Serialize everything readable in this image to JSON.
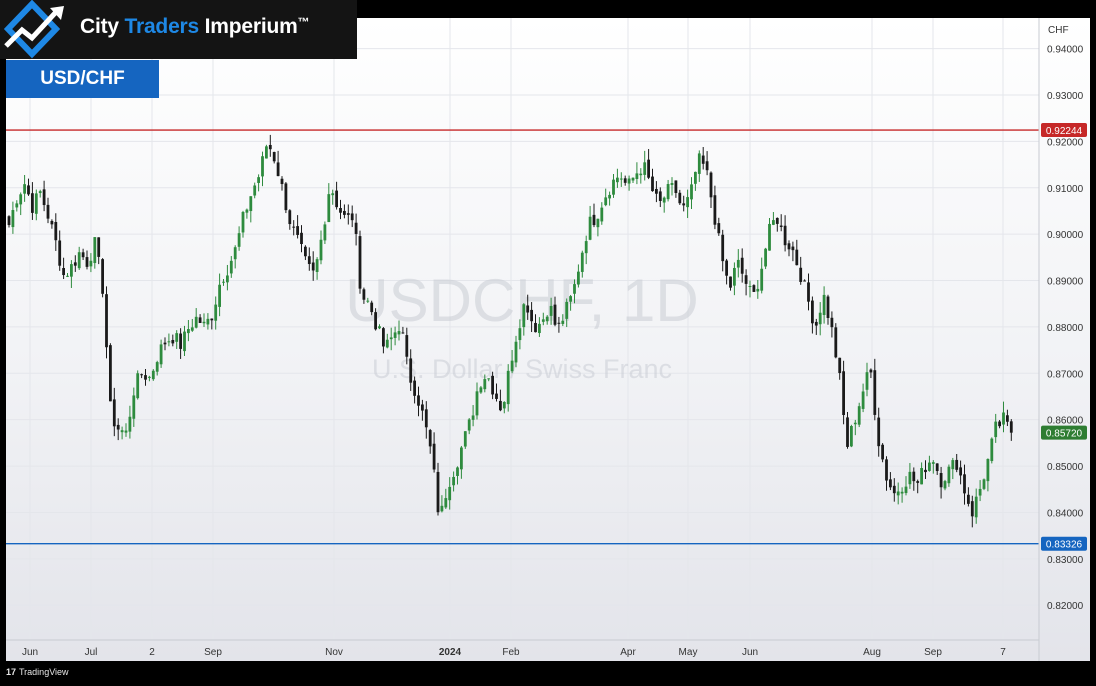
{
  "brand": {
    "name_part1": "City ",
    "name_accent": "Traders",
    "name_part2": " Imperium",
    "trademark": "™"
  },
  "pair_label": "USD/CHF",
  "footer": {
    "logo_mark": "17",
    "text": "TradingView"
  },
  "colors": {
    "up": "#2e8b3e",
    "down": "#1a1a1a",
    "resistance": "#c62828",
    "support": "#1565c0",
    "last": "#2e7d32",
    "grid": "#e4e6eb"
  },
  "chart_data": {
    "type": "candlestick",
    "watermark_symbol": "USDCHF, 1D",
    "watermark_name": "U.S. Dollar / Swiss Franc",
    "currency": "CHF",
    "ylim": [
      0.8125,
      0.9466
    ],
    "y_ticks": [
      "0.94000",
      "0.93000",
      "0.92000",
      "0.91000",
      "0.90000",
      "0.89000",
      "0.88000",
      "0.87000",
      "0.86000",
      "0.85000",
      "0.84000",
      "0.83000",
      "0.82000"
    ],
    "x_ticks": [
      "Jun",
      "Jul",
      "2",
      "Sep",
      "Nov",
      "2024",
      "Feb",
      "Apr",
      "May",
      "Jun",
      "Aug",
      "Sep",
      "7"
    ],
    "horizontal_lines": [
      {
        "name": "resistance",
        "value": 0.92244,
        "label": "0.92244"
      },
      {
        "name": "support",
        "value": 0.83326,
        "label": "0.83326"
      }
    ],
    "last_price": {
      "value": 0.8572,
      "label": "0.85720"
    },
    "close_path": [
      0.902,
      0.908,
      0.911,
      0.906,
      0.909,
      0.904,
      0.898,
      0.891,
      0.893,
      0.896,
      0.894,
      0.898,
      0.888,
      0.861,
      0.858,
      0.857,
      0.867,
      0.87,
      0.869,
      0.874,
      0.877,
      0.878,
      0.876,
      0.88,
      0.882,
      0.88,
      0.883,
      0.89,
      0.893,
      0.897,
      0.904,
      0.909,
      0.913,
      0.92,
      0.916,
      0.909,
      0.902,
      0.898,
      0.893,
      0.891,
      0.9,
      0.911,
      0.906,
      0.903,
      0.904,
      0.887,
      0.885,
      0.88,
      0.875,
      0.878,
      0.881,
      0.87,
      0.866,
      0.86,
      0.852,
      0.838,
      0.846,
      0.85,
      0.855,
      0.86,
      0.868,
      0.87,
      0.866,
      0.862,
      0.872,
      0.88,
      0.886,
      0.88,
      0.881,
      0.885,
      0.879,
      0.883,
      0.887,
      0.895,
      0.902,
      0.904,
      0.908,
      0.911,
      0.913,
      0.91,
      0.913,
      0.915,
      0.91,
      0.906,
      0.909,
      0.91,
      0.905,
      0.908,
      0.916,
      0.914,
      0.905,
      0.895,
      0.888,
      0.894,
      0.89,
      0.886,
      0.892,
      0.9,
      0.904,
      0.899,
      0.897,
      0.892,
      0.886,
      0.88,
      0.887,
      0.88,
      0.87,
      0.854,
      0.86,
      0.866,
      0.871,
      0.856,
      0.848,
      0.844,
      0.846,
      0.848,
      0.846,
      0.85,
      0.852,
      0.847,
      0.849,
      0.851,
      0.845,
      0.84,
      0.845,
      0.851,
      0.858,
      0.86,
      0.857
    ]
  }
}
